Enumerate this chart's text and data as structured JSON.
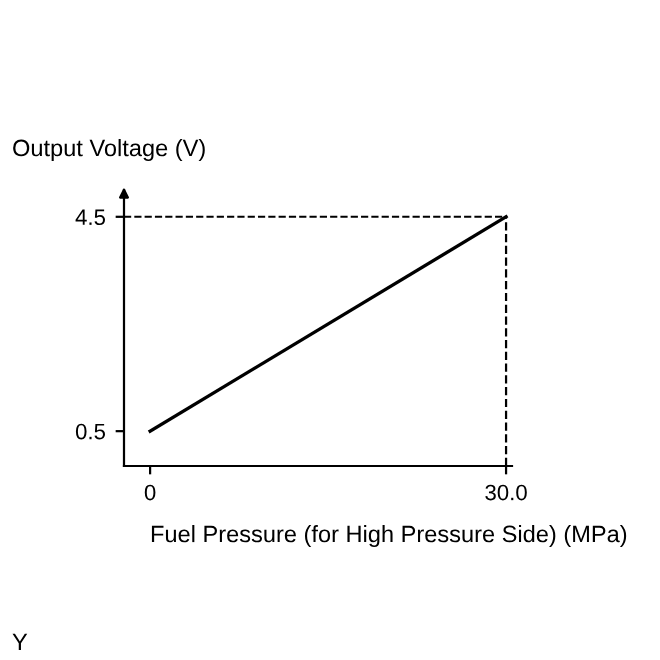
{
  "chart_data": {
    "type": "line",
    "ylabel": "Output Voltage (V)",
    "xlabel": "Fuel Pressure (for High Pressure Side) (MPa)",
    "annotations": [
      "Y"
    ],
    "series": [
      {
        "color": "#000000",
        "x": [
          0,
          30
        ],
        "values": [
          0.5,
          4.5
        ]
      }
    ],
    "xlim": [
      -2.2,
      30.5
    ],
    "ylim": [
      -0.15,
      5.0
    ],
    "xticks": [
      0,
      {
        "value": 30,
        "label": "30.0"
      }
    ],
    "yticks": [
      0.5,
      4.5
    ],
    "ref_lines": [
      {
        "axis": "y",
        "value": 4.5,
        "color": "#000000",
        "line_style": "dashed"
      },
      {
        "axis": "x",
        "value": 30,
        "color": "#000000",
        "line_style": "dashed"
      }
    ],
    "grid": false,
    "marker": "none",
    "line_style": "solid"
  }
}
